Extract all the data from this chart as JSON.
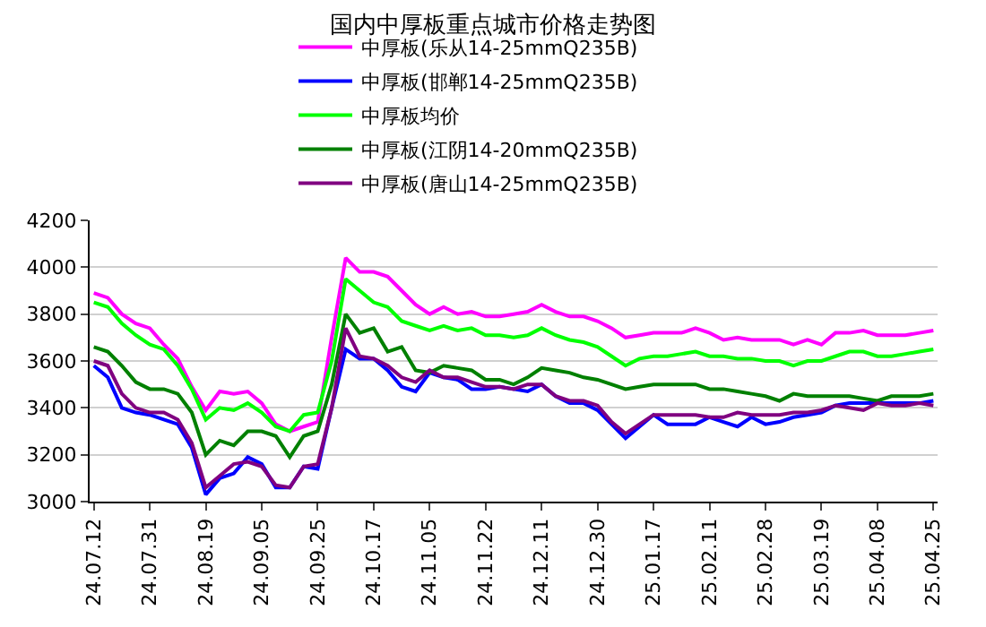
{
  "chart_data": {
    "type": "line",
    "title": "国内中厚板重点城市价格走势图",
    "categories": [
      "24.07.12",
      null,
      null,
      null,
      "24.07.31",
      null,
      null,
      null,
      "24.08.19",
      null,
      null,
      null,
      "24.09.05",
      null,
      null,
      null,
      "24.09.25",
      null,
      null,
      null,
      "24.10.17",
      null,
      null,
      null,
      "24.11.05",
      null,
      null,
      null,
      "24.11.22",
      null,
      null,
      null,
      "24.12.11",
      null,
      null,
      null,
      "24.12.30",
      null,
      null,
      null,
      "25.01.17",
      null,
      null,
      null,
      "25.02.11",
      null,
      null,
      null,
      "25.02.28",
      null,
      null,
      null,
      "25.03.19",
      null,
      null,
      null,
      "25.04.08",
      null,
      null,
      null,
      "25.04.25"
    ],
    "series": [
      {
        "name": "中厚板(乐从14-25mmQ235B)",
        "color": "#ff00ff",
        "values": [
          3890,
          3870,
          3800,
          3760,
          3740,
          3670,
          3610,
          3490,
          3390,
          3470,
          3460,
          3470,
          3420,
          3330,
          3300,
          3320,
          3340,
          3700,
          4040,
          3980,
          3980,
          3960,
          3900,
          3840,
          3800,
          3830,
          3800,
          3810,
          3790,
          3790,
          3800,
          3810,
          3840,
          3810,
          3790,
          3790,
          3770,
          3740,
          3700,
          3710,
          3720,
          3720,
          3720,
          3740,
          3720,
          3690,
          3700,
          3690,
          3690,
          3690,
          3670,
          3690,
          3670,
          3720,
          3720,
          3730,
          3710,
          3710,
          3710,
          3720,
          3730
        ]
      },
      {
        "name": "中厚板(邯郸14-25mmQ235B)",
        "color": "#0000ff",
        "values": [
          3580,
          3530,
          3400,
          3380,
          3370,
          3350,
          3330,
          3230,
          3030,
          3100,
          3120,
          3190,
          3160,
          3060,
          3060,
          3150,
          3140,
          3400,
          3650,
          3610,
          3610,
          3560,
          3490,
          3470,
          3550,
          3530,
          3520,
          3480,
          3480,
          3490,
          3480,
          3470,
          3500,
          3450,
          3420,
          3420,
          3390,
          3330,
          3270,
          3320,
          3370,
          3330,
          3330,
          3330,
          3360,
          3340,
          3320,
          3360,
          3330,
          3340,
          3360,
          3370,
          3380,
          3410,
          3420,
          3420,
          3420,
          3420,
          3420,
          3420,
          3430
        ]
      },
      {
        "name": "中厚板均价",
        "color": "#00ff00",
        "values": [
          3850,
          3830,
          3760,
          3710,
          3670,
          3650,
          3580,
          3480,
          3350,
          3400,
          3390,
          3420,
          3380,
          3320,
          3300,
          3370,
          3380,
          3600,
          3950,
          3900,
          3850,
          3830,
          3770,
          3750,
          3730,
          3750,
          3730,
          3740,
          3710,
          3710,
          3700,
          3710,
          3740,
          3710,
          3690,
          3680,
          3660,
          3620,
          3580,
          3610,
          3620,
          3620,
          3630,
          3640,
          3620,
          3620,
          3610,
          3610,
          3600,
          3600,
          3580,
          3600,
          3600,
          3620,
          3640,
          3640,
          3620,
          3620,
          3630,
          3640,
          3650
        ]
      },
      {
        "name": "中厚板(江阴14-20mmQ235B)",
        "color": "#008000",
        "values": [
          3660,
          3640,
          3580,
          3510,
          3480,
          3480,
          3460,
          3380,
          3200,
          3260,
          3240,
          3300,
          3300,
          3280,
          3190,
          3280,
          3300,
          3500,
          3800,
          3720,
          3740,
          3640,
          3660,
          3560,
          3550,
          3580,
          3570,
          3560,
          3520,
          3520,
          3500,
          3530,
          3570,
          3560,
          3550,
          3530,
          3520,
          3500,
          3480,
          3490,
          3500,
          3500,
          3500,
          3500,
          3480,
          3480,
          3470,
          3460,
          3450,
          3430,
          3460,
          3450,
          3450,
          3450,
          3450,
          3440,
          3430,
          3450,
          3450,
          3450,
          3460
        ]
      },
      {
        "name": "中厚板(唐山14-25mmQ235B)",
        "color": "#800080",
        "values": [
          3600,
          3580,
          3460,
          3400,
          3380,
          3380,
          3350,
          3250,
          3060,
          3110,
          3160,
          3170,
          3150,
          3070,
          3060,
          3150,
          3160,
          3400,
          3740,
          3620,
          3610,
          3580,
          3530,
          3510,
          3560,
          3530,
          3530,
          3510,
          3490,
          3490,
          3480,
          3500,
          3500,
          3450,
          3430,
          3430,
          3410,
          3340,
          3290,
          3330,
          3370,
          3370,
          3370,
          3370,
          3360,
          3360,
          3380,
          3370,
          3370,
          3370,
          3380,
          3380,
          3390,
          3410,
          3400,
          3390,
          3420,
          3410,
          3410,
          3420,
          3410
        ]
      }
    ],
    "ylim": [
      3000,
      4200
    ],
    "yticks": [
      3000,
      3200,
      3400,
      3600,
      3800,
      4000,
      4200
    ],
    "grid": "y",
    "legend": "top"
  }
}
